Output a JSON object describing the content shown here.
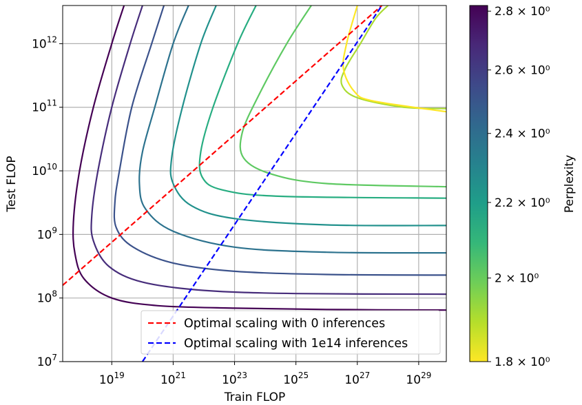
{
  "chart_data": {
    "type": "line",
    "xlabel": "Train FLOP",
    "ylabel": "Test FLOP",
    "xscale": "log",
    "yscale": "log",
    "xlim_exp": [
      17.4,
      29.9
    ],
    "ylim_exp": [
      7,
      12.6
    ],
    "x_ticks": [
      {
        "exp": 19,
        "base": "10",
        "sup": "19"
      },
      {
        "exp": 21,
        "base": "10",
        "sup": "21"
      },
      {
        "exp": 23,
        "base": "10",
        "sup": "23"
      },
      {
        "exp": 25,
        "base": "10",
        "sup": "25"
      },
      {
        "exp": 27,
        "base": "10",
        "sup": "27"
      },
      {
        "exp": 29,
        "base": "10",
        "sup": "29"
      }
    ],
    "y_ticks": [
      {
        "exp": 7,
        "base": "10",
        "sup": "7"
      },
      {
        "exp": 8,
        "base": "10",
        "sup": "8"
      },
      {
        "exp": 9,
        "base": "10",
        "sup": "9"
      },
      {
        "exp": 10,
        "base": "10",
        "sup": "10"
      },
      {
        "exp": 11,
        "base": "10",
        "sup": "11"
      },
      {
        "exp": 12,
        "base": "10",
        "sup": "12"
      }
    ],
    "contours": [
      {
        "name": "Perplexity ≈ 2.8",
        "color": "#440154",
        "points": [
          [
            19.4,
            12.6
          ],
          [
            19.0,
            12.0
          ],
          [
            18.4,
            11.0
          ],
          [
            17.95,
            10.0
          ],
          [
            17.75,
            9.2
          ],
          [
            17.8,
            8.7
          ],
          [
            18.1,
            8.3
          ],
          [
            19.0,
            8.0
          ],
          [
            20.5,
            7.88
          ],
          [
            23.0,
            7.84
          ],
          [
            26.0,
            7.82
          ],
          [
            29.9,
            7.81
          ]
        ]
      },
      {
        "name": "Perplexity ≈ 2.6",
        "color": "#472d7b",
        "points": [
          [
            20.0,
            12.6
          ],
          [
            19.6,
            12.0
          ],
          [
            19.0,
            11.0
          ],
          [
            18.55,
            10.0
          ],
          [
            18.35,
            9.3
          ],
          [
            18.4,
            8.9
          ],
          [
            18.9,
            8.5
          ],
          [
            20.0,
            8.25
          ],
          [
            22.0,
            8.12
          ],
          [
            25.0,
            8.07
          ],
          [
            29.9,
            8.06
          ]
        ]
      },
      {
        "name": "Perplexity ≈ 2.4",
        "color": "#3b528b",
        "points": [
          [
            20.7,
            12.6
          ],
          [
            20.3,
            12.0
          ],
          [
            19.65,
            11.0
          ],
          [
            19.25,
            10.0
          ],
          [
            19.1,
            9.5
          ],
          [
            19.15,
            9.1
          ],
          [
            19.7,
            8.8
          ],
          [
            21.0,
            8.55
          ],
          [
            23.0,
            8.42
          ],
          [
            26.0,
            8.37
          ],
          [
            29.9,
            8.36
          ]
        ]
      },
      {
        "name": "Perplexity ≈ 2.2",
        "color": "#2c728e",
        "points": [
          [
            21.5,
            12.6
          ],
          [
            21.0,
            12.0
          ],
          [
            20.4,
            11.0
          ],
          [
            20.0,
            10.3
          ],
          [
            19.9,
            9.8
          ],
          [
            20.1,
            9.4
          ],
          [
            21.0,
            9.05
          ],
          [
            23.0,
            8.8
          ],
          [
            26.0,
            8.72
          ],
          [
            29.9,
            8.71
          ]
        ]
      },
      {
        "name": "Perplexity ≈ 2.1",
        "color": "#21918c",
        "points": [
          [
            22.4,
            12.6
          ],
          [
            21.9,
            12.0
          ],
          [
            21.3,
            11.0
          ],
          [
            20.95,
            10.2
          ],
          [
            21.0,
            9.8
          ],
          [
            21.6,
            9.45
          ],
          [
            23.0,
            9.25
          ],
          [
            26.0,
            9.15
          ],
          [
            29.9,
            9.14
          ]
        ]
      },
      {
        "name": "Perplexity ≈ 2.0",
        "color": "#27ad81",
        "points": [
          [
            23.7,
            12.6
          ],
          [
            23.1,
            12.0
          ],
          [
            22.3,
            11.0
          ],
          [
            21.9,
            10.3
          ],
          [
            21.95,
            9.9
          ],
          [
            22.6,
            9.7
          ],
          [
            24.5,
            9.6
          ],
          [
            29.9,
            9.57
          ]
        ]
      },
      {
        "name": "Perplexity ≈ 1.9",
        "color": "#5ec962",
        "points": [
          [
            25.5,
            12.6
          ],
          [
            24.7,
            12.0
          ],
          [
            23.8,
            11.2
          ],
          [
            23.25,
            10.6
          ],
          [
            23.3,
            10.2
          ],
          [
            24.2,
            9.95
          ],
          [
            26.0,
            9.8
          ],
          [
            29.9,
            9.75
          ]
        ]
      },
      {
        "name": "Perplexity ≈ 1.85",
        "color": "#aadc32",
        "points": [
          [
            28.0,
            12.6
          ],
          [
            27.6,
            12.4
          ],
          [
            27.1,
            12.0
          ],
          [
            26.6,
            11.6
          ],
          [
            26.5,
            11.35
          ],
          [
            27.0,
            11.15
          ],
          [
            28.5,
            11.0
          ],
          [
            29.9,
            10.98
          ]
        ]
      },
      {
        "name": "Perplexity ≈ 1.8",
        "color": "#fde725",
        "points": [
          [
            27.0,
            12.6
          ],
          [
            26.65,
            12.0
          ],
          [
            26.55,
            11.6
          ],
          [
            26.9,
            11.25
          ],
          [
            27.5,
            11.1
          ],
          [
            29.9,
            10.93
          ]
        ]
      }
    ],
    "trend_lines": [
      {
        "name": "Optimal scaling with 0 inferences",
        "color": "#ff0000",
        "points": [
          [
            17.4,
            8.2
          ],
          [
            27.8,
            12.6
          ]
        ]
      },
      {
        "name": "Optimal scaling with 1e14 inferences",
        "color": "#0000ff",
        "points": [
          [
            20.0,
            7.0
          ],
          [
            27.8,
            12.6
          ]
        ]
      }
    ],
    "legend": {
      "position": "lower-right",
      "entries": [
        {
          "label": "Optimal scaling with 0 inferences",
          "color": "#ff0000"
        },
        {
          "label": "Optimal scaling with 1e14 inferences",
          "color": "#0000ff"
        }
      ]
    },
    "colorbar": {
      "label": "Perplexity",
      "range": [
        1.8,
        2.82
      ],
      "colormap": [
        "#fde725",
        "#b5de2b",
        "#6ece58",
        "#35b779",
        "#1f9e89",
        "#26828e",
        "#31688e",
        "#3e4989",
        "#482878",
        "#440154"
      ],
      "ticks": [
        {
          "value": 2.8,
          "label": "2.8 × 10⁰"
        },
        {
          "value": 2.6,
          "label": "2.6 × 10⁰"
        },
        {
          "value": 2.4,
          "label": "2.4 × 10⁰"
        },
        {
          "value": 2.2,
          "label": "2.2 × 10⁰"
        },
        {
          "value": 2.0,
          "label": "2 × 10⁰"
        },
        {
          "value": 1.8,
          "label": "1.8 × 10⁰"
        }
      ]
    }
  }
}
